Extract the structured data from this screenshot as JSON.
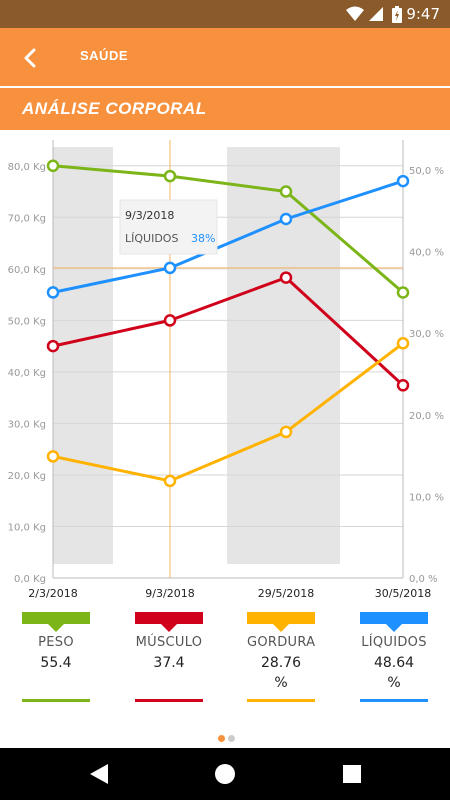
{
  "status": {
    "time": "9:47"
  },
  "appbar": {
    "title": "SAÚDE"
  },
  "section": {
    "heading": "ANÁLISE CORPORAL"
  },
  "chart_data": {
    "type": "line",
    "x": [
      "2/3/2018",
      "9/3/2018",
      "29/5/2018",
      "30/5/2018"
    ],
    "left_axis": {
      "ticks": [
        "0,0 Kg",
        "10,0 Kg",
        "20,0 Kg",
        "30,0 Kg",
        "40,0 Kg",
        "50,0 Kg",
        "60,0 Kg",
        "70,0 Kg",
        "80,0 Kg"
      ],
      "ylim": [
        0,
        85
      ]
    },
    "right_axis": {
      "ticks": [
        "0,0 %",
        "10,0 %",
        "20,0 %",
        "30,0 %",
        "40,0 %",
        "50,0 %"
      ],
      "ylim": [
        0,
        50
      ]
    },
    "series": [
      {
        "key": "peso",
        "axis": "left",
        "color": "#7cb518",
        "values": [
          80,
          78,
          75,
          55.4
        ]
      },
      {
        "key": "musculo",
        "axis": "left",
        "color": "#d0021b",
        "values": [
          45,
          50,
          58.3,
          37.4
        ]
      },
      {
        "key": "gordura",
        "axis": "right",
        "color": "#ffb300",
        "values": [
          14.9,
          11.9,
          17.9,
          28.76
        ]
      },
      {
        "key": "liquidos",
        "axis": "right",
        "color": "#1e90ff",
        "values": [
          35,
          38,
          44,
          48.64
        ]
      }
    ],
    "tooltip": {
      "date": "9/3/2018",
      "label": "LÍQUIDOS",
      "value": "38%"
    },
    "shaded_columns": [
      0,
      2
    ],
    "grid": true
  },
  "legend": [
    {
      "label": "PESO",
      "value": "55.4",
      "unit": "",
      "color": "#7cb518"
    },
    {
      "label": "MÚSCULO",
      "value": "37.4",
      "unit": "",
      "color": "#d0021b"
    },
    {
      "label": "GORDURA",
      "value": "28.76",
      "unit": "%",
      "color": "#ffb300"
    },
    {
      "label": "LÍQUIDOS",
      "value": "48.64",
      "unit": "%",
      "color": "#1e90ff"
    }
  ],
  "pager": {
    "pages": 2,
    "active": 0,
    "active_color": "#f7913d",
    "inactive_color": "#cccccc"
  }
}
